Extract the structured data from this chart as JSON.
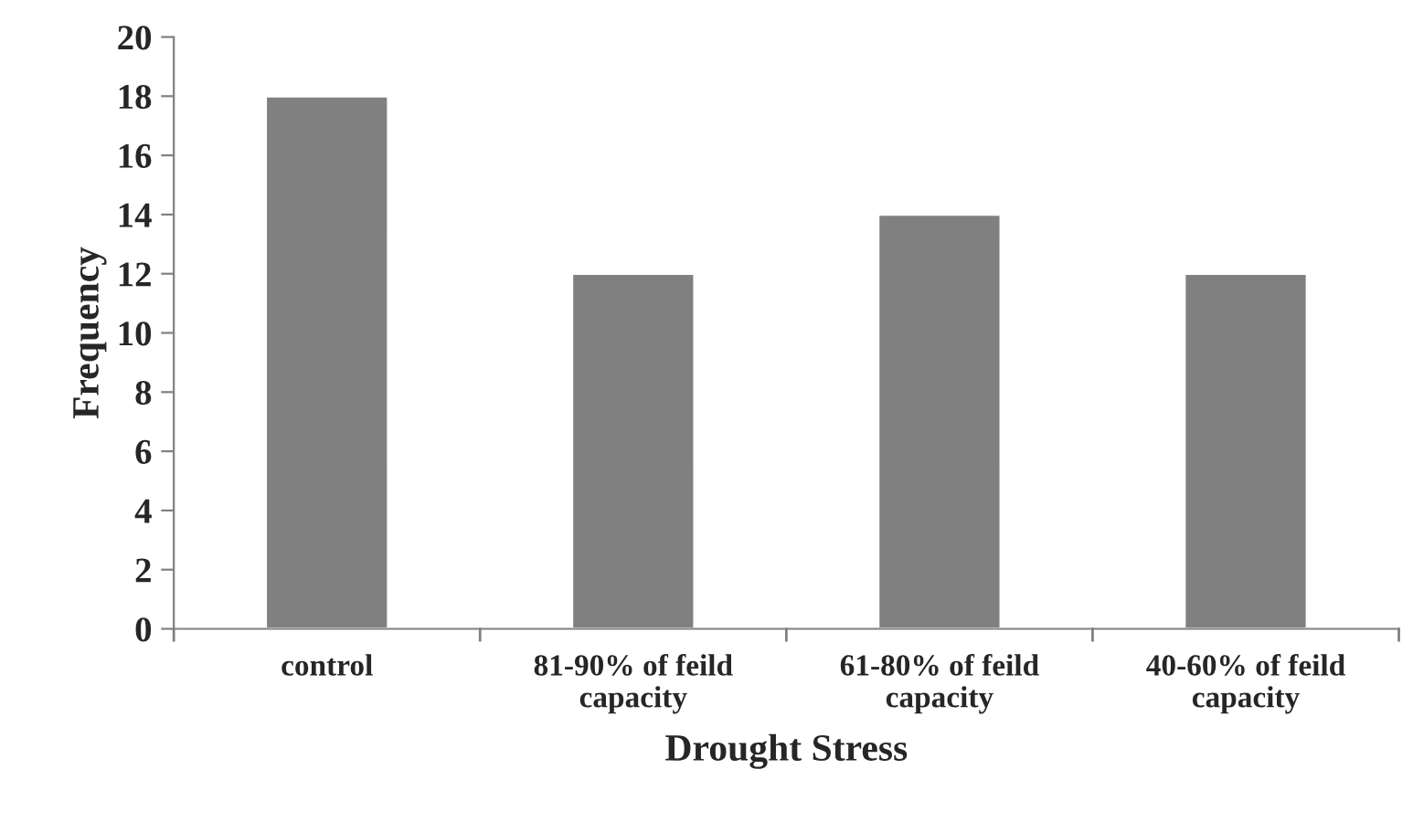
{
  "chart_data": {
    "type": "bar",
    "xlabel": "Drought Stress",
    "ylabel": "Frequency",
    "categories": [
      "control",
      "81-90% of feild\ncapacity",
      "61-80% of feild\ncapacity",
      "40-60% of feild\ncapacity"
    ],
    "values": [
      18,
      12,
      14,
      12
    ],
    "color": "#808080",
    "ylim": [
      0,
      20
    ],
    "yticks": [
      0,
      2,
      4,
      6,
      8,
      10,
      12,
      14,
      16,
      18,
      20
    ],
    "grid": false,
    "legend": false
  }
}
